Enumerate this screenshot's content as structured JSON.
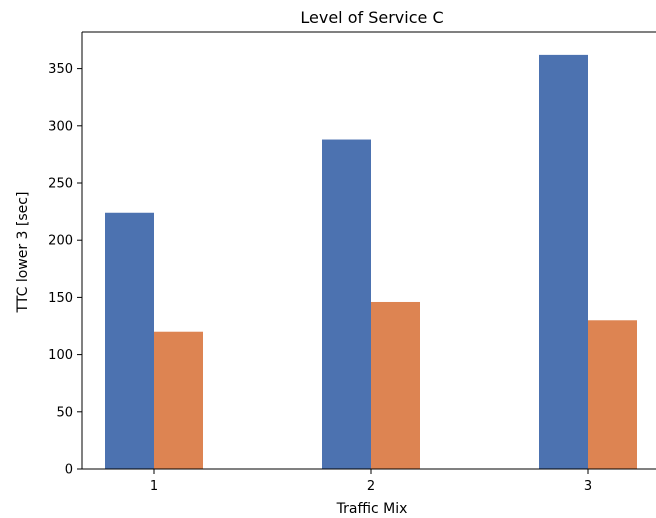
{
  "chart_data": {
    "type": "bar",
    "title": "Level of Service C",
    "xlabel": "Traffic Mix",
    "ylabel": "TTC lower 3 [sec]",
    "categories": [
      "1",
      "2",
      "3"
    ],
    "series": [
      {
        "values": [
          224,
          288,
          362
        ],
        "color": "#4c72b0"
      },
      {
        "values": [
          120,
          146,
          130
        ],
        "color": "#dd8452"
      }
    ],
    "ylim": [
      0,
      382
    ],
    "yticks": [
      0,
      50,
      100,
      150,
      200,
      250,
      300,
      350
    ],
    "grid": false,
    "legend": "none"
  }
}
